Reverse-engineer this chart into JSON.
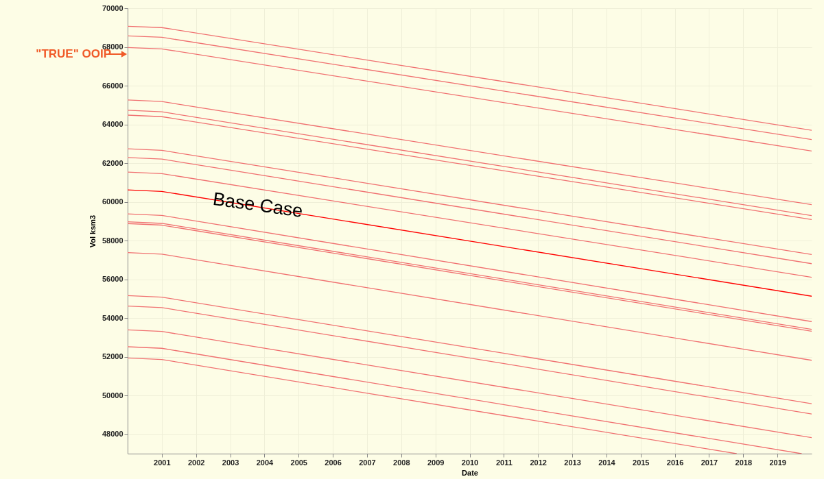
{
  "chart_data": {
    "type": "line",
    "xlabel": "Date",
    "ylabel": "Vol   ksm3",
    "x": [
      2000,
      2001,
      2020
    ],
    "xlim": [
      2000,
      2020
    ],
    "xticks": [
      2001,
      2002,
      2003,
      2004,
      2005,
      2006,
      2007,
      2008,
      2009,
      2010,
      2011,
      2012,
      2013,
      2014,
      2015,
      2016,
      2017,
      2018,
      2019
    ],
    "ylim": [
      47000,
      70000
    ],
    "yticks": [
      48000,
      50000,
      52000,
      54000,
      56000,
      58000,
      60000,
      62000,
      64000,
      66000,
      68000,
      70000
    ],
    "grid": true,
    "marker": "none",
    "line_style": "solid",
    "series": [
      {
        "color": "#f07070",
        "values": [
          69070,
          69000,
          63700
        ]
      },
      {
        "color": "#f07070",
        "values": [
          68570,
          68500,
          63220
        ]
      },
      {
        "color": "#f07070",
        "values": [
          67970,
          67900,
          62630
        ]
      },
      {
        "color": "#f07070",
        "values": [
          65260,
          65180,
          59860
        ]
      },
      {
        "color": "#f07070",
        "values": [
          64730,
          64650,
          59290
        ]
      },
      {
        "color": "#f07070",
        "values": [
          64480,
          64400,
          59090
        ]
      },
      {
        "color": "#f07070",
        "values": [
          62740,
          62660,
          57280
        ]
      },
      {
        "color": "#f07070",
        "values": [
          62290,
          62210,
          56810
        ]
      },
      {
        "color": "#f07070",
        "values": [
          61540,
          61460,
          56110
        ]
      },
      {
        "name": "Base Case",
        "color": "#ff0000",
        "values": [
          60620,
          60540,
          55130
        ]
      },
      {
        "color": "#f07070",
        "values": [
          59380,
          59300,
          53820
        ]
      },
      {
        "color": "#f07070",
        "values": [
          58970,
          58890,
          53420
        ]
      },
      {
        "color": "#f07070",
        "values": [
          58880,
          58800,
          53320
        ]
      },
      {
        "color": "#f07070",
        "values": [
          57380,
          57300,
          51820
        ]
      },
      {
        "color": "#f07070",
        "values": [
          55160,
          55080,
          49580
        ]
      },
      {
        "color": "#f07070",
        "values": [
          54620,
          54540,
          49050
        ]
      },
      {
        "color": "#f07070",
        "values": [
          53390,
          53310,
          47830
        ]
      },
      {
        "color": "#f07070",
        "x": [
          2000,
          2001,
          2019.7
        ],
        "values": [
          52520,
          52440,
          47000
        ]
      },
      {
        "color": "#f07070",
        "x": [
          2000,
          2001,
          2017.8
        ],
        "values": [
          51940,
          51860,
          47000
        ]
      }
    ],
    "annotations": [
      "\"TRUE\" OOIP"
    ]
  }
}
